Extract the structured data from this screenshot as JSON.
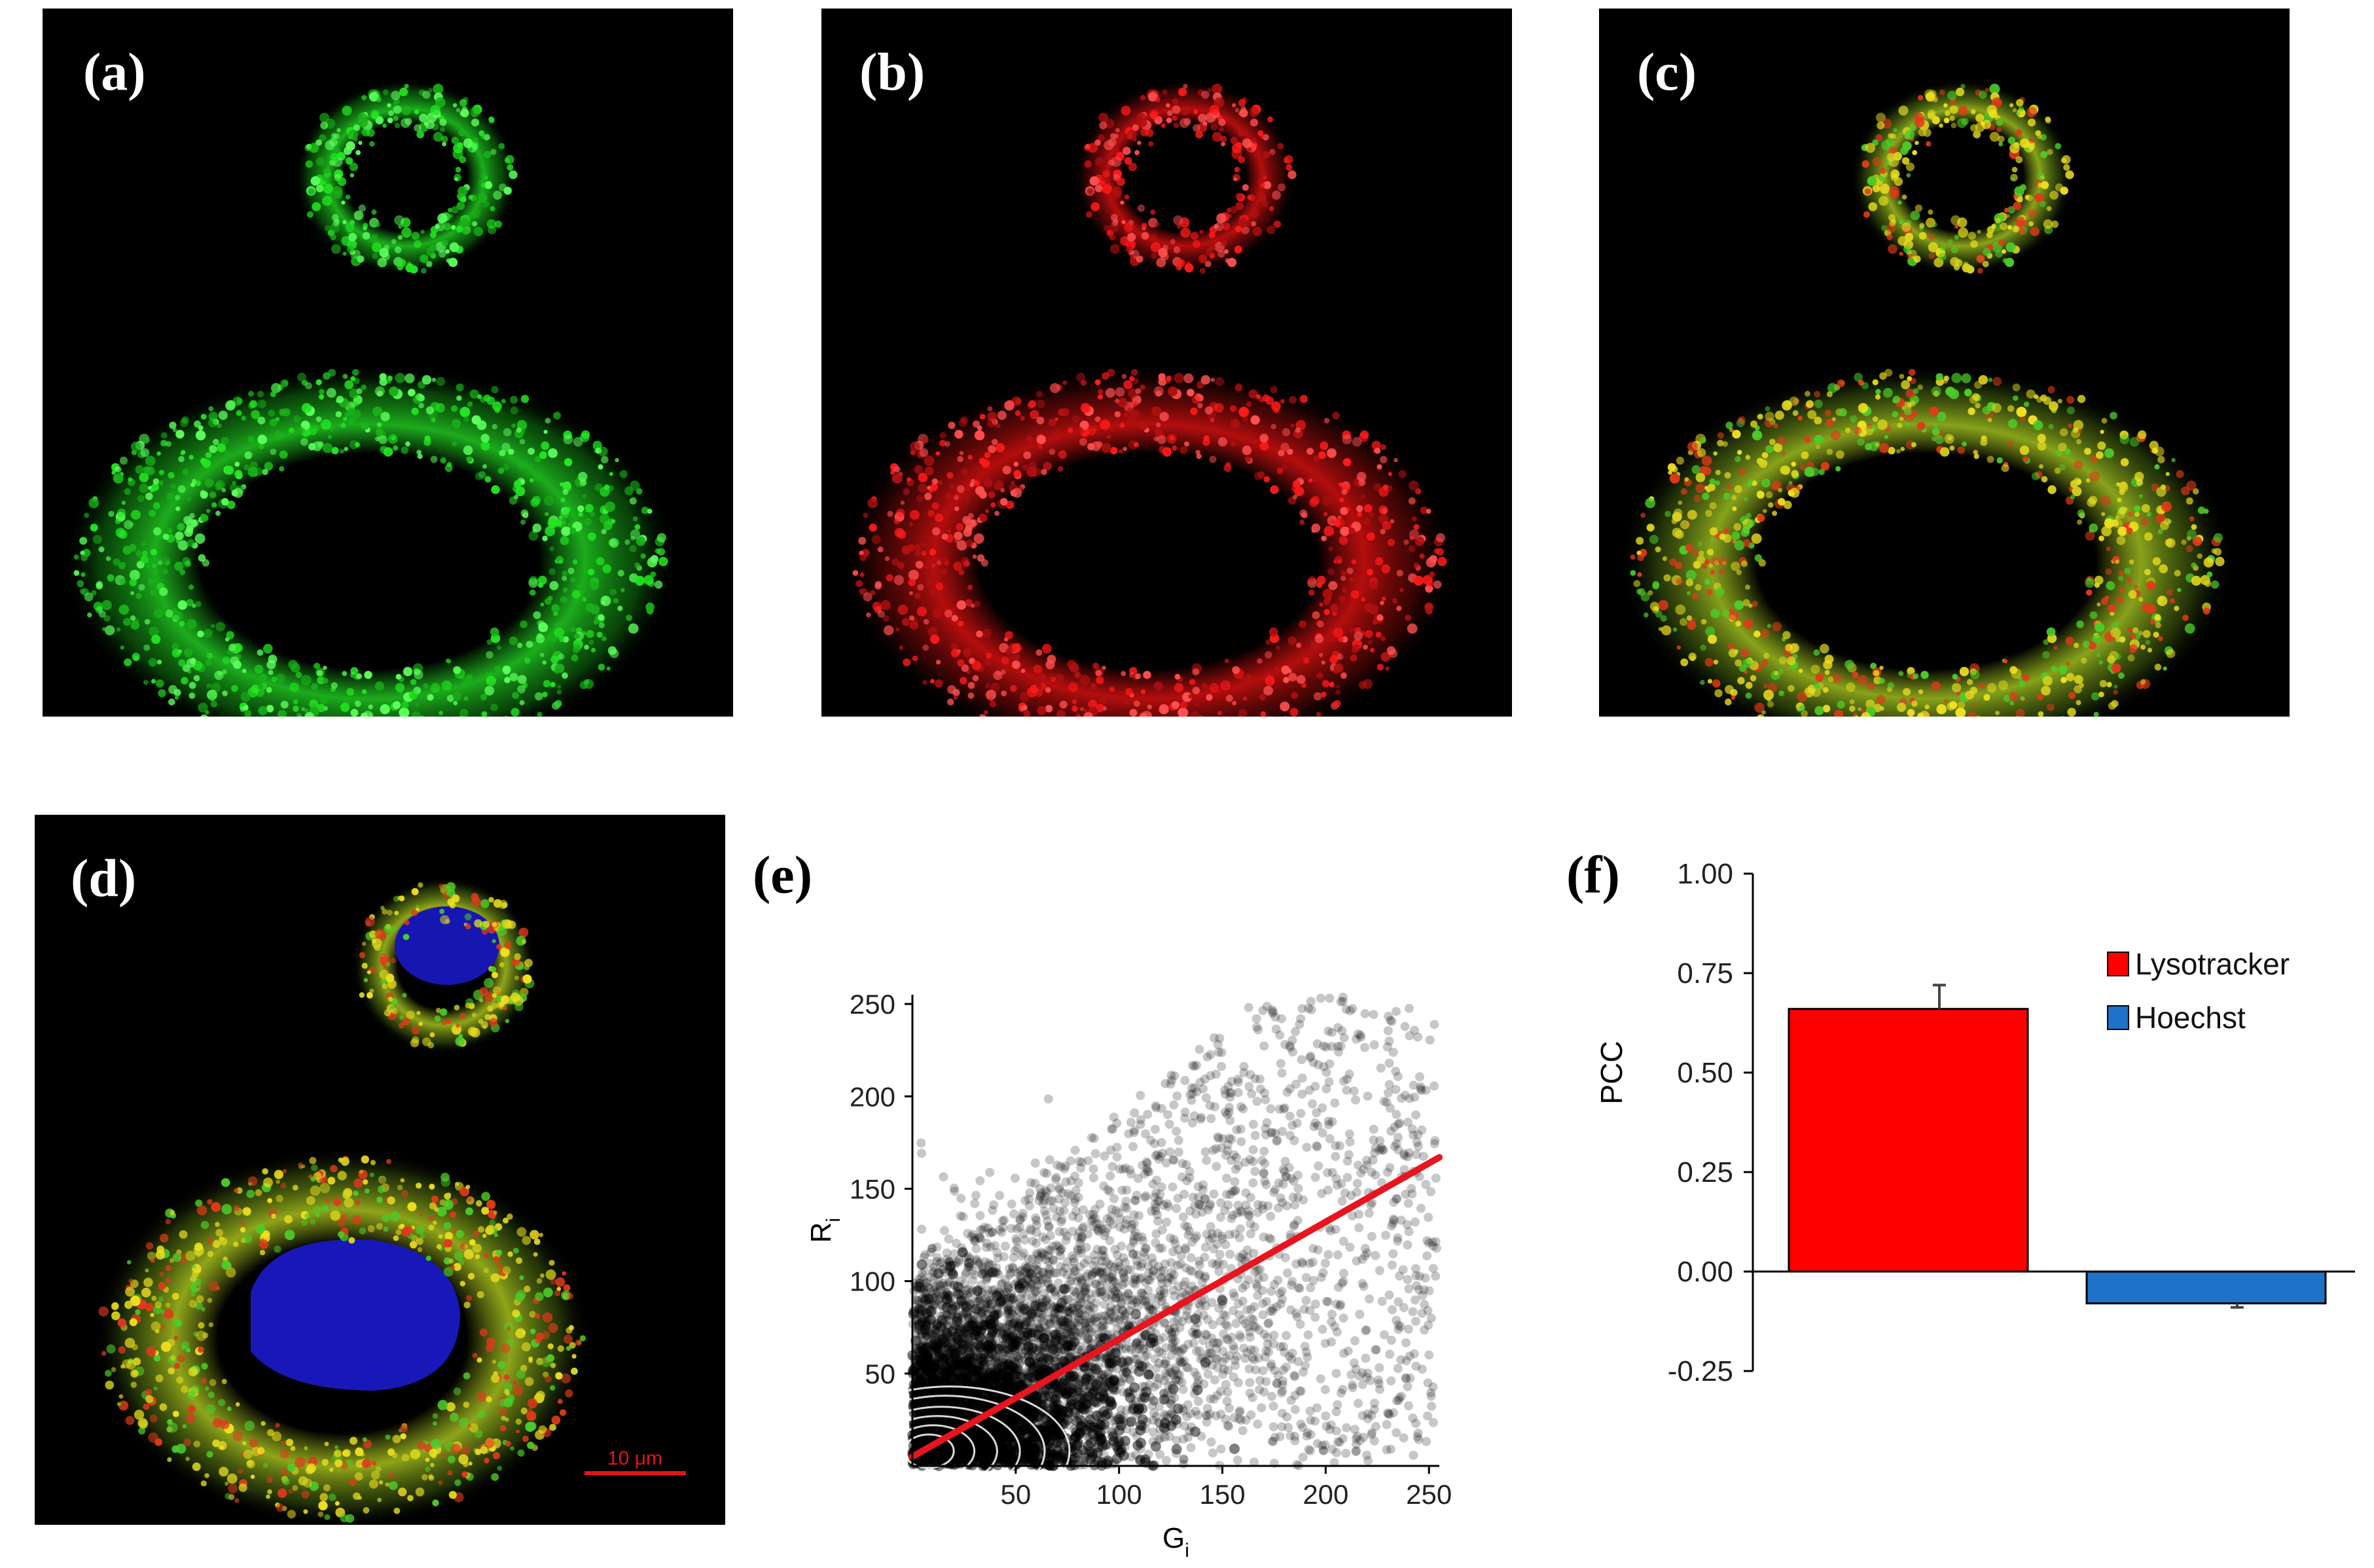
{
  "panels": {
    "a": {
      "label": "(a)"
    },
    "b": {
      "label": "(b)"
    },
    "c": {
      "label": "(c)"
    },
    "d": {
      "label": "(d)",
      "scale_bar": "10 μm"
    },
    "e": {
      "label": "(e)"
    },
    "f": {
      "label": "(f)"
    }
  },
  "colors": {
    "green": "#22e622",
    "red": "#ff1a1a",
    "yellow": "#d7d21e",
    "blue": "#1a1ab4",
    "fit_line": "#e8141e",
    "bar_lysotracker": "#ff0000",
    "bar_hoechst": "#1e73c8"
  },
  "chart_data": [
    {
      "id": "e",
      "type": "scatter",
      "title": "",
      "xlabel": "G",
      "xlabel_sub": "i",
      "ylabel": "R",
      "ylabel_sub": "i",
      "xlim": [
        0,
        255
      ],
      "ylim": [
        0,
        255
      ],
      "xticks": [
        50,
        100,
        150,
        200,
        250
      ],
      "yticks": [
        50,
        100,
        150,
        200,
        250
      ],
      "fit_line": {
        "x": [
          0,
          255
        ],
        "y": [
          5,
          167
        ]
      },
      "grid": false,
      "point_cloud": "dense semi-transparent black points; densest near origin, spreading upward and right"
    },
    {
      "id": "f",
      "type": "bar",
      "title": "",
      "ylabel": "PCC",
      "ylim": [
        -0.25,
        1.0
      ],
      "yticks": [
        "-0.25",
        "0.00",
        "0.25",
        "0.50",
        "0.75",
        "1.00"
      ],
      "categories": [
        "Lysotracker",
        "Hoechst"
      ],
      "values": [
        0.66,
        -0.08
      ],
      "errors": [
        0.06,
        0.01
      ],
      "legend": [
        "Lysotracker",
        "Hoechst"
      ],
      "legend_position": "top-right"
    }
  ]
}
